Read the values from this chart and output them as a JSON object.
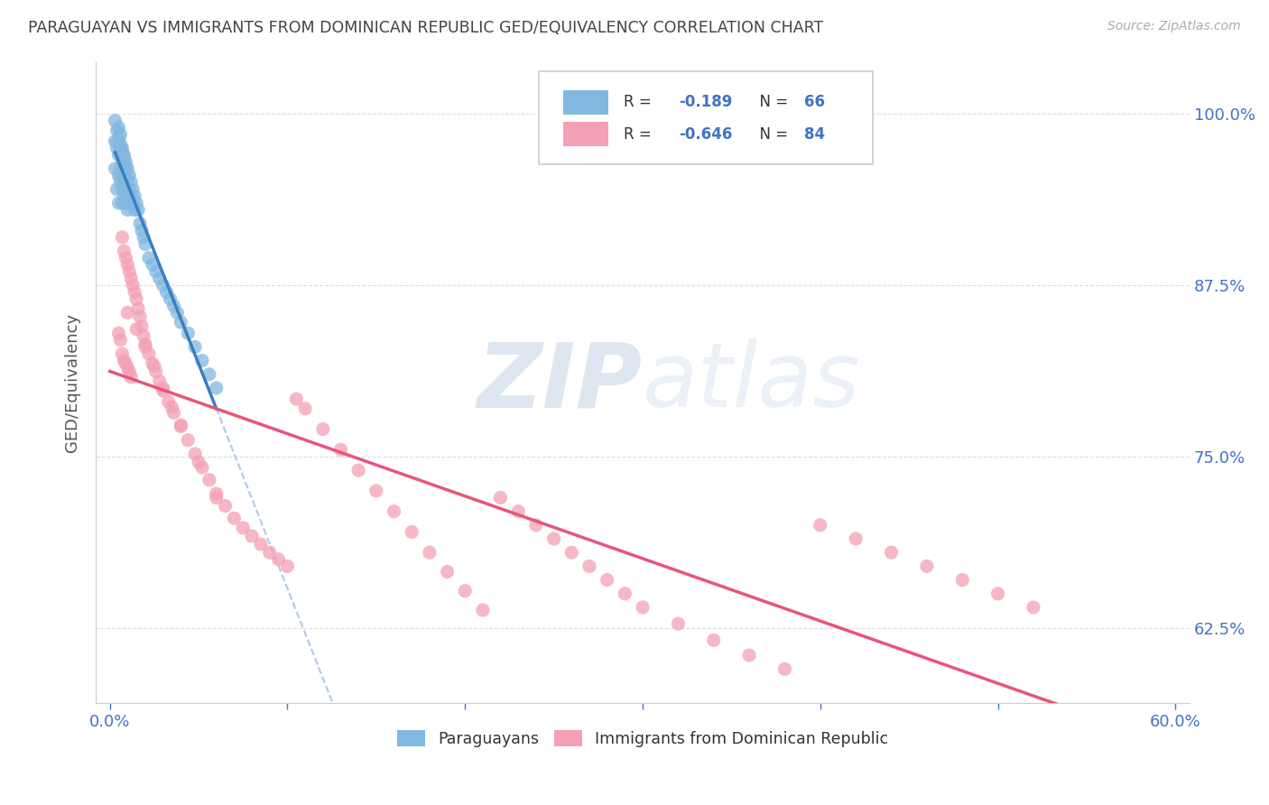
{
  "title": "PARAGUAYAN VS IMMIGRANTS FROM DOMINICAN REPUBLIC GED/EQUIVALENCY CORRELATION CHART",
  "source": "Source: ZipAtlas.com",
  "ylabel": "GED/Equivalency",
  "blue_R": -0.189,
  "blue_N": 66,
  "pink_R": -0.646,
  "pink_N": 84,
  "blue_color": "#82b8e0",
  "pink_color": "#f4a0b5",
  "blue_line_color": "#3a7fc1",
  "pink_line_color": "#e8557a",
  "dash_line_color": "#b0c8e8",
  "watermark_zip": "ZIP",
  "watermark_atlas": "atlas",
  "legend_label_blue": "Paraguayans",
  "legend_label_pink": "Immigrants from Dominican Republic",
  "background_color": "#ffffff",
  "grid_color": "#dddddd",
  "title_color": "#444444",
  "tick_color": "#4472c4",
  "blue_scatter_x": [
    0.003,
    0.003,
    0.004,
    0.004,
    0.005,
    0.005,
    0.005,
    0.005,
    0.006,
    0.006,
    0.006,
    0.006,
    0.007,
    0.007,
    0.007,
    0.007,
    0.007,
    0.008,
    0.008,
    0.008,
    0.008,
    0.009,
    0.009,
    0.009,
    0.009,
    0.01,
    0.01,
    0.01,
    0.01,
    0.011,
    0.011,
    0.011,
    0.012,
    0.012,
    0.013,
    0.013,
    0.014,
    0.014,
    0.015,
    0.016,
    0.017,
    0.018,
    0.019,
    0.02,
    0.022,
    0.024,
    0.026,
    0.028,
    0.03,
    0.032,
    0.034,
    0.036,
    0.038,
    0.04,
    0.044,
    0.048,
    0.052,
    0.056,
    0.06,
    0.003,
    0.004,
    0.005,
    0.006,
    0.007,
    0.008,
    0.009
  ],
  "blue_scatter_y": [
    0.98,
    0.96,
    0.975,
    0.945,
    0.99,
    0.97,
    0.955,
    0.935,
    0.985,
    0.975,
    0.96,
    0.95,
    0.975,
    0.965,
    0.955,
    0.945,
    0.935,
    0.97,
    0.96,
    0.95,
    0.94,
    0.965,
    0.955,
    0.945,
    0.935,
    0.96,
    0.95,
    0.94,
    0.93,
    0.955,
    0.945,
    0.935,
    0.95,
    0.94,
    0.945,
    0.935,
    0.94,
    0.93,
    0.935,
    0.93,
    0.92,
    0.915,
    0.91,
    0.905,
    0.895,
    0.89,
    0.885,
    0.88,
    0.875,
    0.87,
    0.865,
    0.86,
    0.855,
    0.848,
    0.84,
    0.83,
    0.82,
    0.81,
    0.8,
    0.995,
    0.988,
    0.982,
    0.978,
    0.972,
    0.968,
    0.962
  ],
  "pink_scatter_x": [
    0.005,
    0.006,
    0.007,
    0.007,
    0.008,
    0.008,
    0.009,
    0.009,
    0.01,
    0.01,
    0.011,
    0.011,
    0.012,
    0.012,
    0.013,
    0.014,
    0.015,
    0.016,
    0.017,
    0.018,
    0.019,
    0.02,
    0.022,
    0.024,
    0.026,
    0.028,
    0.03,
    0.033,
    0.036,
    0.04,
    0.044,
    0.048,
    0.052,
    0.056,
    0.06,
    0.065,
    0.07,
    0.075,
    0.08,
    0.085,
    0.09,
    0.095,
    0.1,
    0.105,
    0.11,
    0.12,
    0.13,
    0.14,
    0.15,
    0.16,
    0.17,
    0.18,
    0.19,
    0.2,
    0.21,
    0.22,
    0.23,
    0.24,
    0.25,
    0.26,
    0.27,
    0.28,
    0.29,
    0.3,
    0.32,
    0.34,
    0.36,
    0.38,
    0.4,
    0.42,
    0.44,
    0.46,
    0.48,
    0.5,
    0.52,
    0.01,
    0.015,
    0.02,
    0.025,
    0.03,
    0.035,
    0.04,
    0.05,
    0.06
  ],
  "pink_scatter_y": [
    0.84,
    0.835,
    0.91,
    0.825,
    0.9,
    0.82,
    0.895,
    0.818,
    0.89,
    0.815,
    0.885,
    0.812,
    0.88,
    0.808,
    0.875,
    0.87,
    0.865,
    0.858,
    0.852,
    0.845,
    0.838,
    0.832,
    0.825,
    0.818,
    0.812,
    0.805,
    0.798,
    0.79,
    0.782,
    0.772,
    0.762,
    0.752,
    0.742,
    0.733,
    0.723,
    0.714,
    0.705,
    0.698,
    0.692,
    0.686,
    0.68,
    0.675,
    0.67,
    0.792,
    0.785,
    0.77,
    0.755,
    0.74,
    0.725,
    0.71,
    0.695,
    0.68,
    0.666,
    0.652,
    0.638,
    0.72,
    0.71,
    0.7,
    0.69,
    0.68,
    0.67,
    0.66,
    0.65,
    0.64,
    0.628,
    0.616,
    0.605,
    0.595,
    0.7,
    0.69,
    0.68,
    0.67,
    0.66,
    0.65,
    0.64,
    0.855,
    0.843,
    0.83,
    0.816,
    0.8,
    0.786,
    0.773,
    0.746,
    0.72
  ]
}
